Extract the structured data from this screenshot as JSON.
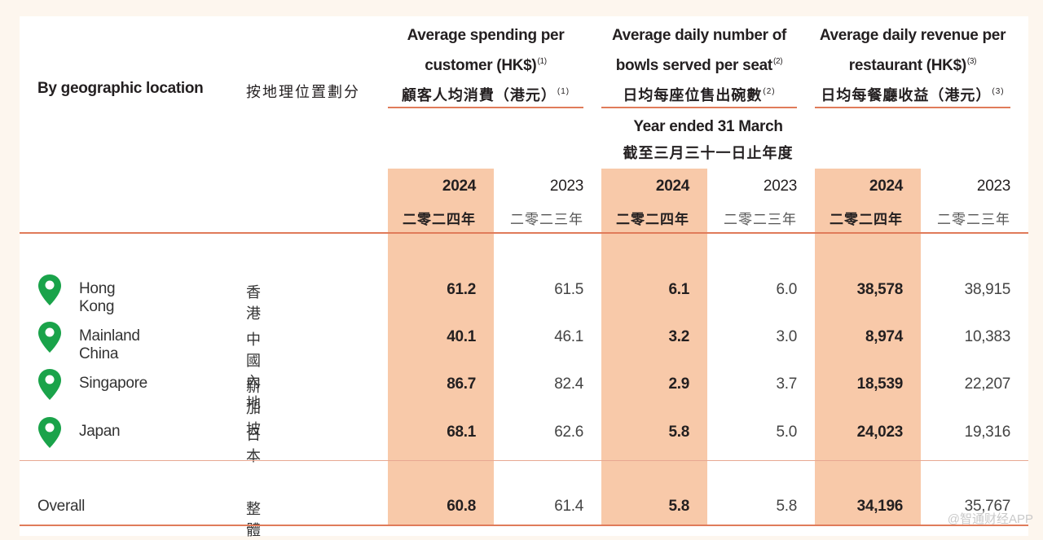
{
  "table": {
    "header": {
      "by_location_en": "By geographic location",
      "by_location_zh": "按地理位置劃分",
      "groups": [
        {
          "en_line1": "Average spending per",
          "en_line2": "customer (HK$)",
          "en_note": "(1)",
          "zh": "顧客人均消費（港元）",
          "zh_note": "(1)"
        },
        {
          "en_line1": "Average daily number of",
          "en_line2": "bowls served per seat",
          "en_note": "(2)",
          "zh": "日均每座位售出碗數",
          "zh_note": "(2)"
        },
        {
          "en_line1": "Average daily revenue per",
          "en_line2": "restaurant (HK$)",
          "en_note": "(3)",
          "zh": "日均每餐廳收益（港元）",
          "zh_note": "(3)"
        }
      ],
      "period_en": "Year ended 31 March",
      "period_zh": "截至三月三十一日止年度",
      "years": [
        {
          "en": "2024",
          "zh": "二零二四年",
          "highlight": true
        },
        {
          "en": "2023",
          "zh": "二零二三年",
          "highlight": false
        }
      ]
    },
    "rows": [
      {
        "en": "Hong Kong",
        "zh": "香港",
        "values": [
          "61.2",
          "61.5",
          "6.1",
          "6.0",
          "38,578",
          "38,915"
        ]
      },
      {
        "en": "Mainland China",
        "zh": "中國內地",
        "values": [
          "40.1",
          "46.1",
          "3.2",
          "3.0",
          "8,974",
          "10,383"
        ]
      },
      {
        "en": "Singapore",
        "zh": "新加坡",
        "values": [
          "86.7",
          "82.4",
          "2.9",
          "3.7",
          "18,539",
          "22,207"
        ]
      },
      {
        "en": "Japan",
        "zh": "日本",
        "values": [
          "68.1",
          "62.6",
          "5.8",
          "5.0",
          "24,023",
          "19,316"
        ]
      }
    ],
    "overall": {
      "en": "Overall",
      "zh": "整體",
      "values": [
        "60.8",
        "61.4",
        "5.8",
        "5.8",
        "34,196",
        "35,767"
      ]
    }
  },
  "colors": {
    "highlight": "#f8c9a9",
    "rule": "#e07b5a",
    "pin": "#1aa34a",
    "page_bg": "#fdf6ee"
  },
  "watermark": "@智通财经APP"
}
